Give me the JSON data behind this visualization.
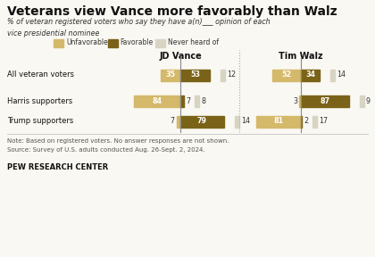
{
  "title": "Veterans view Vance more favorably than Walz",
  "subtitle": "% of veteran registered voters who say they have a(n)___ opinion of each\nvice presidential nominee",
  "categories": [
    "All veteran voters",
    "Harris supporters",
    "Trump supporters"
  ],
  "vance": {
    "unfavorable": [
      35,
      84,
      7
    ],
    "favorable": [
      53,
      7,
      79
    ],
    "never_heard": [
      12,
      8,
      14
    ]
  },
  "walz": {
    "unfavorable": [
      52,
      3,
      81
    ],
    "favorable": [
      34,
      87,
      2
    ],
    "never_heard": [
      14,
      9,
      17
    ]
  },
  "color_unfavorable": "#d4b96a",
  "color_favorable": "#7a6318",
  "color_never_heard": "#d8d4c4",
  "note": "Note: Based on registered voters. No answer responses are not shown.",
  "source": "Source: Survey of U.S. adults conducted Aug. 26-Sept. 2, 2024.",
  "footer": "PEW RESEARCH CENTER",
  "background": "#faf8f2"
}
